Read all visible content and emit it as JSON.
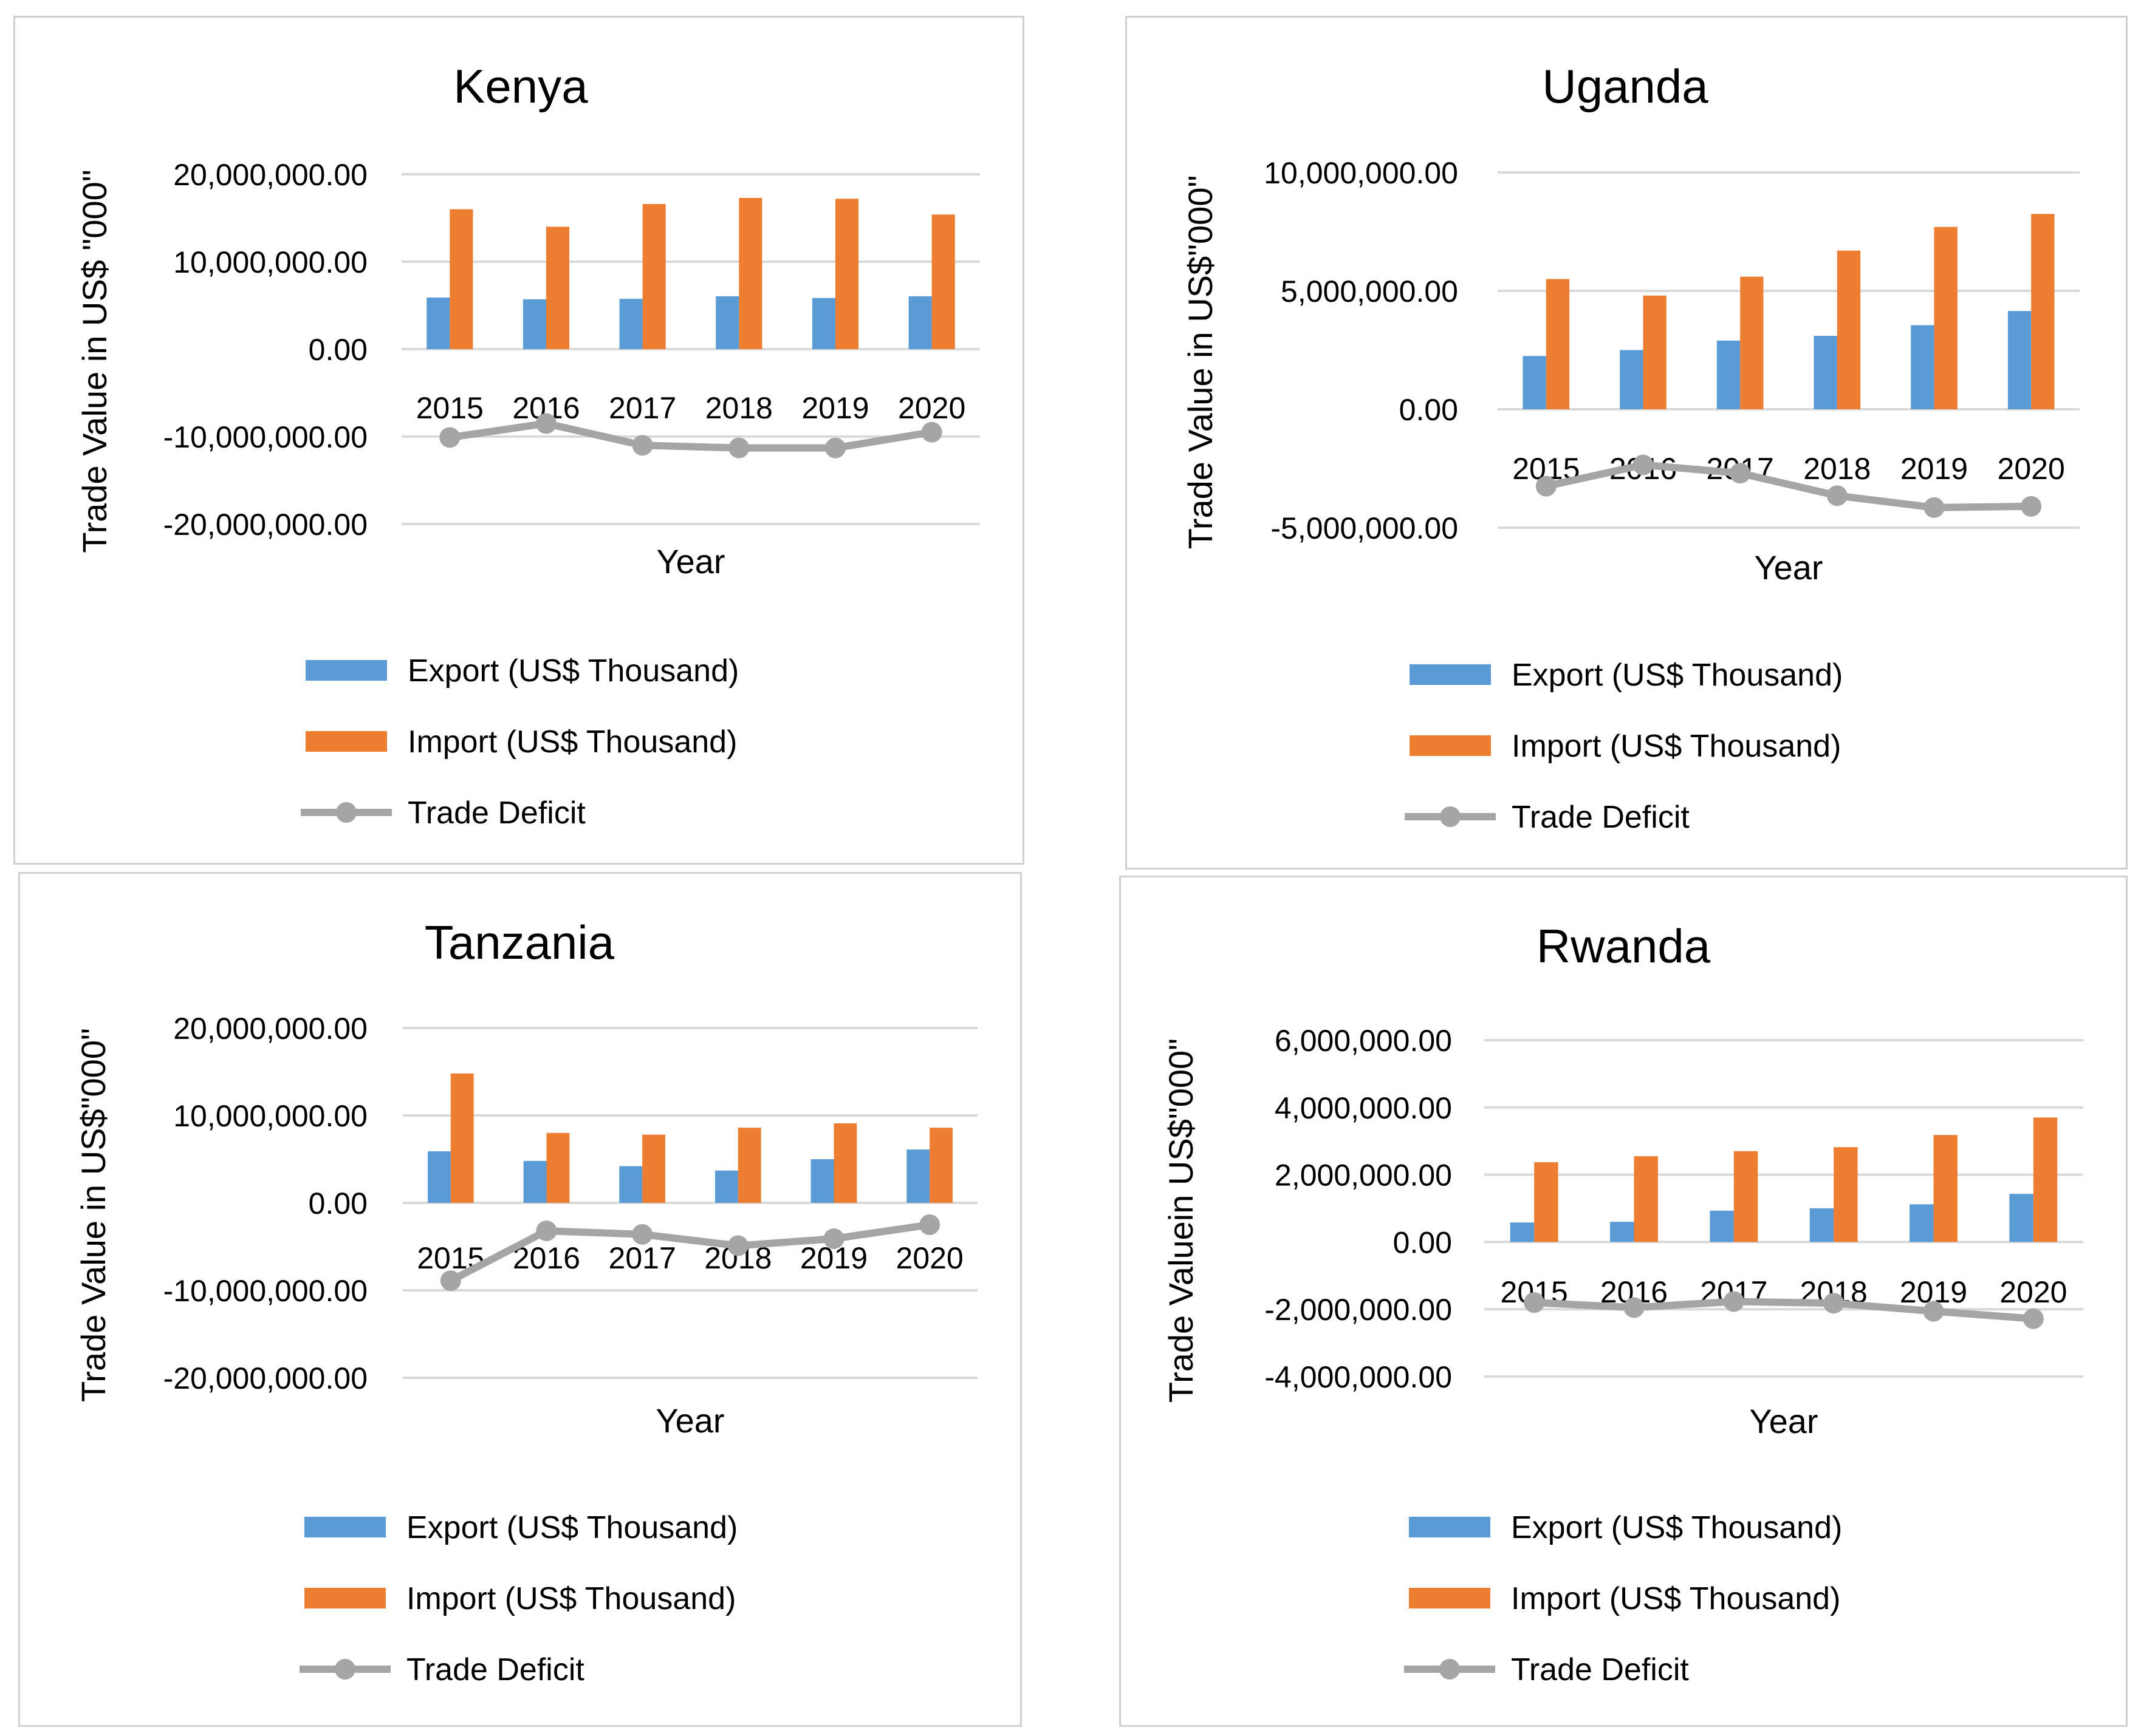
{
  "colors": {
    "export": "#5B9BD5",
    "import": "#ED7D31",
    "deficit": "#A5A5A5",
    "grid": "#D9D9D9"
  },
  "legend": {
    "export": "Export (US$ Thousand)",
    "import": "Import (US$ Thousand)",
    "deficit": "Trade Deficit"
  },
  "chart_data": [
    {
      "type": "bar",
      "title": "Kenya",
      "xlabel": "Year",
      "ylabel": "Trade Value in US$ \"000\"",
      "categories": [
        "2015",
        "2016",
        "2017",
        "2018",
        "2019",
        "2020"
      ],
      "ylim": [
        -20000000,
        20000000
      ],
      "yticks": [
        20000000,
        10000000,
        0,
        -10000000,
        -20000000
      ],
      "ytick_labels": [
        "20,000,000.00",
        "10,000,000.00",
        "0.00",
        "-10,000,000.00",
        "-20,000,000.00"
      ],
      "series": [
        {
          "name": "Export (US$ Thousand)",
          "kind": "bar",
          "values": [
            5900000,
            5700000,
            5750000,
            6050000,
            5850000,
            6050000
          ]
        },
        {
          "name": "Import (US$ Thousand)",
          "kind": "bar",
          "values": [
            16000000,
            14000000,
            16600000,
            17300000,
            17200000,
            15400000
          ]
        },
        {
          "name": "Trade Deficit",
          "kind": "line",
          "values": [
            -10100000,
            -8500000,
            -11000000,
            -11300000,
            -11300000,
            -9500000
          ]
        }
      ]
    },
    {
      "type": "bar",
      "title": "Uganda",
      "xlabel": "Year",
      "ylabel": "Trade Value in US$\"000\"",
      "categories": [
        "2015",
        "2016",
        "2017",
        "2018",
        "2019",
        "2020"
      ],
      "ylim": [
        -5000000,
        10000000
      ],
      "yticks": [
        10000000,
        5000000,
        0,
        -5000000
      ],
      "ytick_labels": [
        "10,000,000.00",
        "5,000,000.00",
        "0.00",
        "-5,000,000.00"
      ],
      "series": [
        {
          "name": "Export (US$ Thousand)",
          "kind": "bar",
          "values": [
            2250000,
            2500000,
            2900000,
            3100000,
            3550000,
            4150000
          ]
        },
        {
          "name": "Import (US$ Thousand)",
          "kind": "bar",
          "values": [
            5500000,
            4800000,
            5600000,
            6700000,
            7700000,
            8250000
          ]
        },
        {
          "name": "Trade Deficit",
          "kind": "line",
          "values": [
            -3250000,
            -2350000,
            -2700000,
            -3650000,
            -4150000,
            -4100000
          ]
        }
      ]
    },
    {
      "type": "bar",
      "title": "Tanzania",
      "xlabel": "Year",
      "ylabel": "Trade Value in US$\"000\"",
      "categories": [
        "2015",
        "2016",
        "2017",
        "2018",
        "2019",
        "2020"
      ],
      "ylim": [
        -20000000,
        20000000
      ],
      "yticks": [
        20000000,
        10000000,
        0,
        -10000000,
        -20000000
      ],
      "ytick_labels": [
        "20,000,000.00",
        "10,000,000.00",
        "0.00",
        "-10,000,000.00",
        "-20,000,000.00"
      ],
      "series": [
        {
          "name": "Export (US$ Thousand)",
          "kind": "bar",
          "values": [
            5900000,
            4800000,
            4200000,
            3700000,
            5000000,
            6100000
          ]
        },
        {
          "name": "Import (US$ Thousand)",
          "kind": "bar",
          "values": [
            14800000,
            8000000,
            7800000,
            8600000,
            9100000,
            8600000
          ]
        },
        {
          "name": "Trade Deficit",
          "kind": "line",
          "values": [
            -8900000,
            -3200000,
            -3600000,
            -4900000,
            -4100000,
            -2500000
          ]
        }
      ]
    },
    {
      "type": "bar",
      "title": "Rwanda",
      "xlabel": "Year",
      "ylabel": "Trade Valuein US$\"000\"",
      "categories": [
        "2015",
        "2016",
        "2017",
        "2018",
        "2019",
        "2020"
      ],
      "ylim": [
        -4000000,
        6000000
      ],
      "yticks": [
        6000000,
        4000000,
        2000000,
        0,
        -2000000,
        -4000000
      ],
      "ytick_labels": [
        "6,000,000.00",
        "4,000,000.00",
        "2,000,000.00",
        "0.00",
        "-2,000,000.00",
        "-4,000,000.00"
      ],
      "series": [
        {
          "name": "Export (US$ Thousand)",
          "kind": "bar",
          "values": [
            580000,
            600000,
            930000,
            1000000,
            1120000,
            1430000
          ]
        },
        {
          "name": "Import (US$ Thousand)",
          "kind": "bar",
          "values": [
            2370000,
            2550000,
            2700000,
            2820000,
            3180000,
            3700000
          ]
        },
        {
          "name": "Trade Deficit",
          "kind": "line",
          "values": [
            -1800000,
            -1950000,
            -1770000,
            -1820000,
            -2060000,
            -2280000
          ]
        }
      ]
    }
  ]
}
